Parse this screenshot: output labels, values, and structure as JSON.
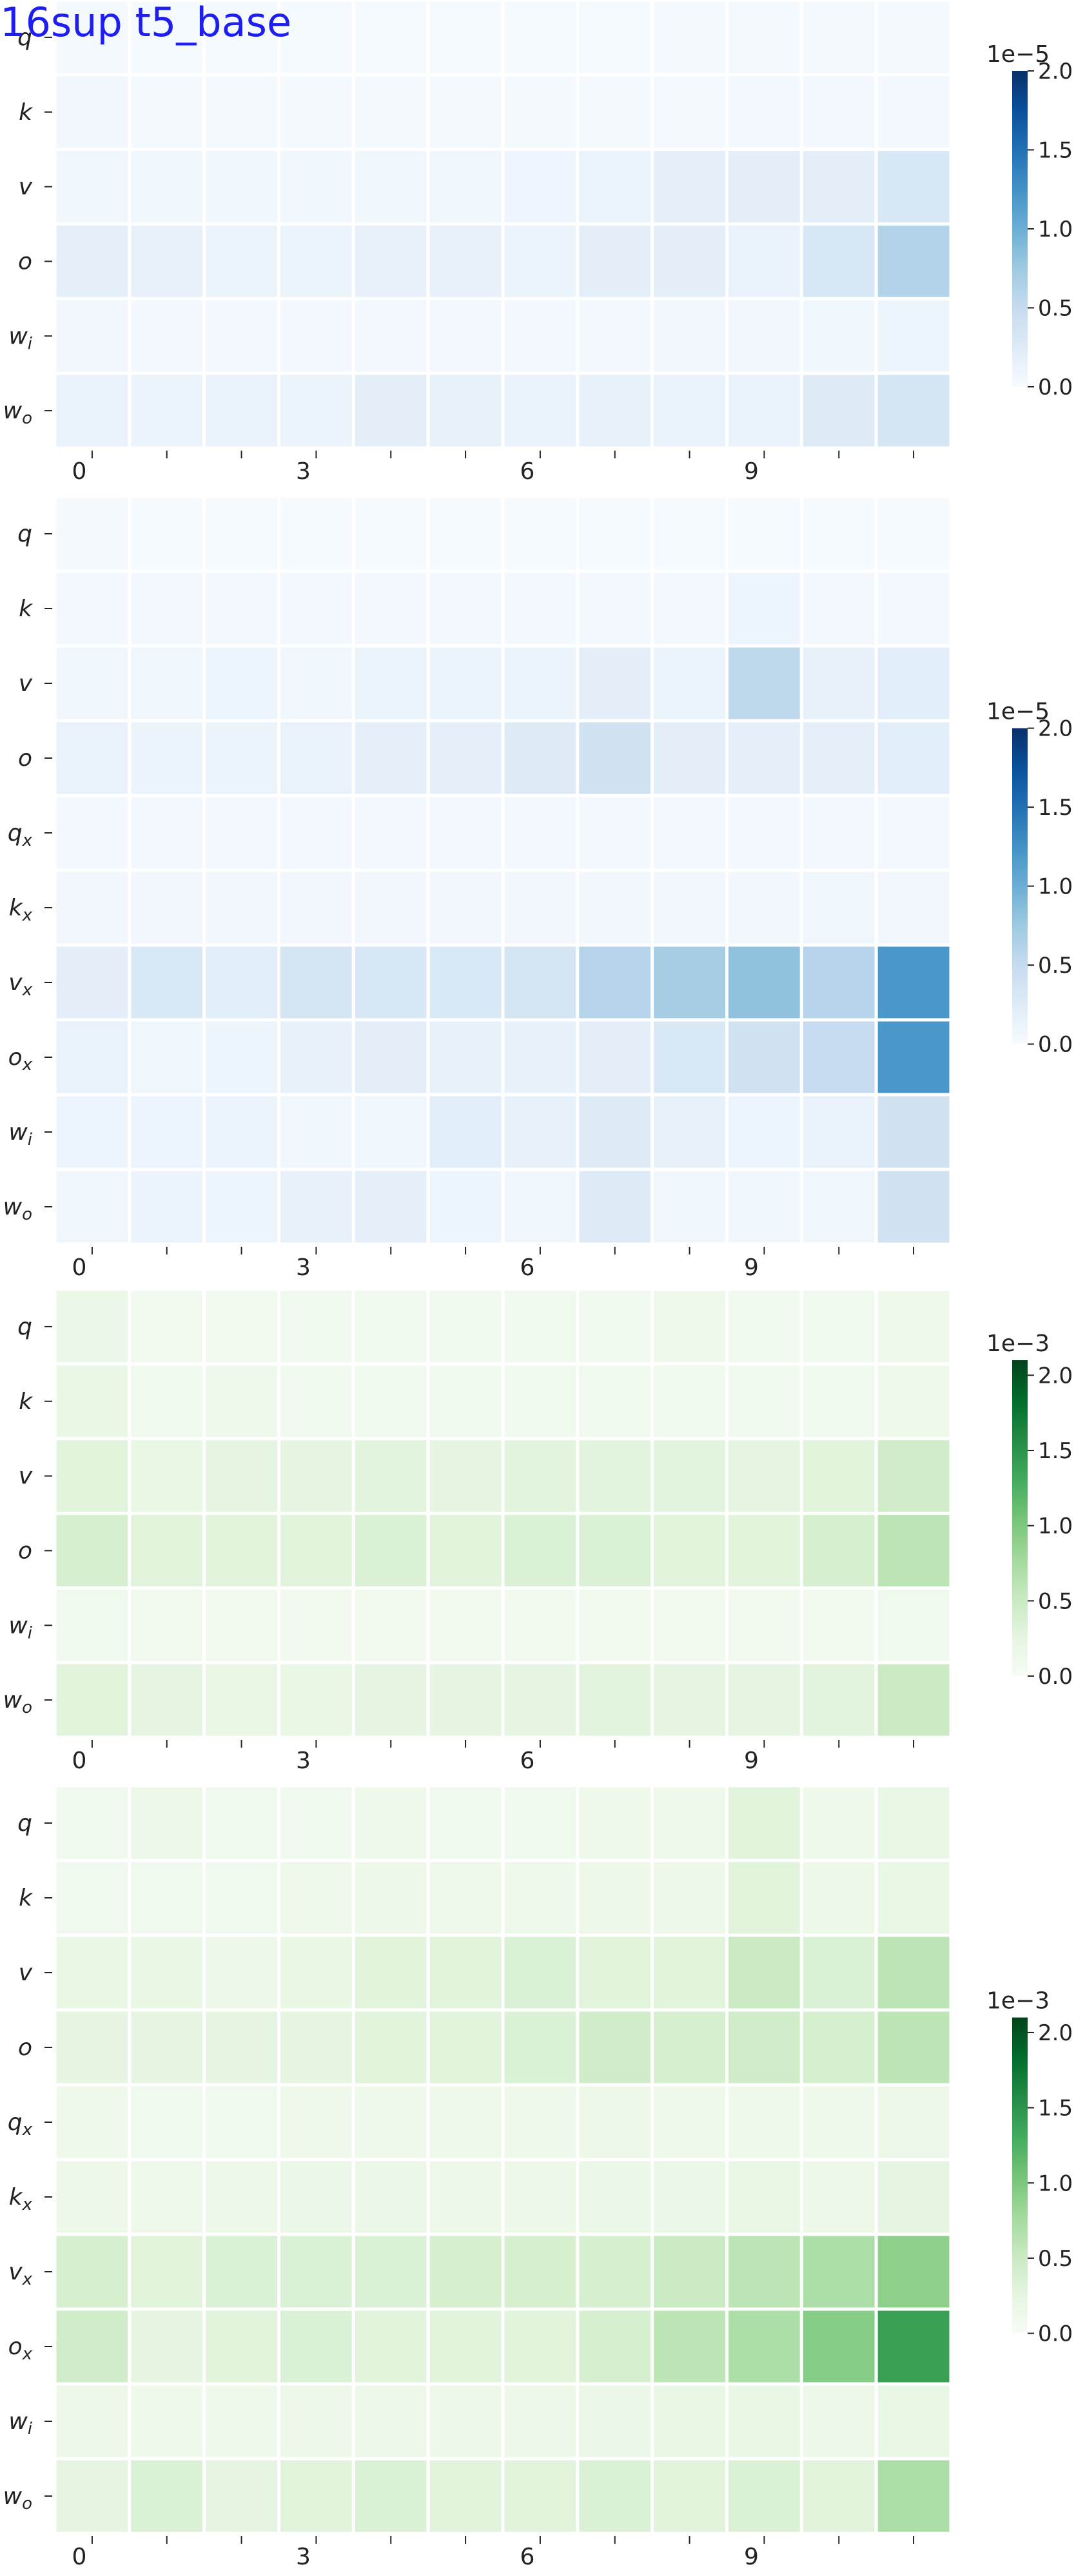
{
  "overlay": {
    "title": "16sup t5_base",
    "color": "#1e1ef0"
  },
  "chart_data": [
    {
      "type": "heatmap",
      "palette": "blues",
      "colorbar": {
        "exponent": "1e−5",
        "ticks": [
          "0.0",
          "0.5",
          "1.0",
          "1.5",
          "2.0"
        ],
        "vmin": 0,
        "vmax": 2.0
      },
      "x_tick_labels": [
        "0",
        "",
        "",
        "3",
        "",
        "",
        "6",
        "",
        "",
        "9",
        "",
        ""
      ],
      "y_labels": [
        {
          "base": "q",
          "sub": ""
        },
        {
          "base": "k",
          "sub": ""
        },
        {
          "base": "v",
          "sub": ""
        },
        {
          "base": "o",
          "sub": ""
        },
        {
          "base": "w",
          "sub": "i"
        },
        {
          "base": "w",
          "sub": "o"
        }
      ],
      "values": [
        [
          0.03,
          0.02,
          0.02,
          0.02,
          0.02,
          0.02,
          0.02,
          0.02,
          0.03,
          0.03,
          0.03,
          0.03
        ],
        [
          0.06,
          0.03,
          0.03,
          0.03,
          0.03,
          0.03,
          0.03,
          0.03,
          0.03,
          0.04,
          0.04,
          0.05
        ],
        [
          0.08,
          0.07,
          0.07,
          0.07,
          0.08,
          0.08,
          0.09,
          0.12,
          0.18,
          0.2,
          0.2,
          0.32
        ],
        [
          0.18,
          0.15,
          0.12,
          0.12,
          0.15,
          0.15,
          0.12,
          0.2,
          0.2,
          0.14,
          0.32,
          0.62
        ],
        [
          0.06,
          0.05,
          0.05,
          0.05,
          0.05,
          0.04,
          0.04,
          0.05,
          0.06,
          0.06,
          0.07,
          0.1
        ],
        [
          0.14,
          0.12,
          0.14,
          0.12,
          0.2,
          0.16,
          0.14,
          0.16,
          0.14,
          0.14,
          0.25,
          0.35
        ]
      ]
    },
    {
      "type": "heatmap",
      "palette": "blues",
      "colorbar": {
        "exponent": "1e−5",
        "ticks": [
          "0.0",
          "0.5",
          "1.0",
          "1.5",
          "2.0"
        ],
        "vmin": 0,
        "vmax": 2.0
      },
      "x_tick_labels": [
        "0",
        "",
        "",
        "3",
        "",
        "",
        "6",
        "",
        "",
        "9",
        "",
        ""
      ],
      "y_labels": [
        {
          "base": "q",
          "sub": ""
        },
        {
          "base": "k",
          "sub": ""
        },
        {
          "base": "v",
          "sub": ""
        },
        {
          "base": "o",
          "sub": ""
        },
        {
          "base": "q",
          "sub": "x"
        },
        {
          "base": "k",
          "sub": "x"
        },
        {
          "base": "v",
          "sub": "x"
        },
        {
          "base": "o",
          "sub": "x"
        },
        {
          "base": "w",
          "sub": "i"
        },
        {
          "base": "w",
          "sub": "o"
        }
      ],
      "values": [
        [
          0.03,
          0.02,
          0.02,
          0.02,
          0.02,
          0.02,
          0.02,
          0.02,
          0.02,
          0.02,
          0.02,
          0.02
        ],
        [
          0.04,
          0.05,
          0.04,
          0.04,
          0.04,
          0.04,
          0.05,
          0.05,
          0.04,
          0.1,
          0.04,
          0.04
        ],
        [
          0.08,
          0.08,
          0.1,
          0.08,
          0.12,
          0.12,
          0.12,
          0.2,
          0.12,
          0.55,
          0.15,
          0.22
        ],
        [
          0.14,
          0.12,
          0.12,
          0.14,
          0.18,
          0.18,
          0.25,
          0.4,
          0.2,
          0.18,
          0.18,
          0.22
        ],
        [
          0.04,
          0.04,
          0.04,
          0.04,
          0.04,
          0.04,
          0.04,
          0.04,
          0.04,
          0.04,
          0.04,
          0.04
        ],
        [
          0.06,
          0.06,
          0.06,
          0.06,
          0.06,
          0.06,
          0.06,
          0.06,
          0.06,
          0.06,
          0.08,
          0.06
        ],
        [
          0.2,
          0.3,
          0.22,
          0.36,
          0.32,
          0.3,
          0.36,
          0.6,
          0.7,
          0.82,
          0.6,
          1.2
        ],
        [
          0.14,
          0.08,
          0.1,
          0.16,
          0.2,
          0.16,
          0.16,
          0.2,
          0.3,
          0.4,
          0.5,
          1.2
        ],
        [
          0.1,
          0.1,
          0.12,
          0.08,
          0.08,
          0.22,
          0.16,
          0.25,
          0.16,
          0.1,
          0.14,
          0.4
        ],
        [
          0.08,
          0.12,
          0.1,
          0.15,
          0.18,
          0.1,
          0.08,
          0.25,
          0.08,
          0.08,
          0.08,
          0.4
        ]
      ]
    },
    {
      "type": "heatmap",
      "palette": "greens",
      "colorbar": {
        "exponent": "1e−3",
        "ticks": [
          "0.0",
          "0.5",
          "1.0",
          "1.5",
          "2.0"
        ],
        "vmin": 0,
        "vmax": 2.1
      },
      "x_tick_labels": [
        "0",
        "",
        "",
        "3",
        "",
        "",
        "6",
        "",
        "",
        "9",
        "",
        ""
      ],
      "y_labels": [
        {
          "base": "q",
          "sub": ""
        },
        {
          "base": "k",
          "sub": ""
        },
        {
          "base": "v",
          "sub": ""
        },
        {
          "base": "o",
          "sub": ""
        },
        {
          "base": "w",
          "sub": "i"
        },
        {
          "base": "w",
          "sub": "o"
        }
      ],
      "values": [
        [
          0.18,
          0.08,
          0.08,
          0.1,
          0.1,
          0.1,
          0.1,
          0.1,
          0.12,
          0.1,
          0.1,
          0.12
        ],
        [
          0.2,
          0.1,
          0.12,
          0.1,
          0.1,
          0.1,
          0.1,
          0.1,
          0.1,
          0.1,
          0.1,
          0.12
        ],
        [
          0.3,
          0.2,
          0.25,
          0.25,
          0.28,
          0.25,
          0.28,
          0.28,
          0.28,
          0.25,
          0.3,
          0.45
        ],
        [
          0.4,
          0.3,
          0.3,
          0.3,
          0.35,
          0.3,
          0.35,
          0.35,
          0.3,
          0.3,
          0.4,
          0.6
        ],
        [
          0.1,
          0.08,
          0.08,
          0.08,
          0.08,
          0.08,
          0.08,
          0.08,
          0.08,
          0.08,
          0.08,
          0.1
        ],
        [
          0.3,
          0.25,
          0.22,
          0.2,
          0.25,
          0.25,
          0.25,
          0.28,
          0.25,
          0.25,
          0.28,
          0.5
        ]
      ]
    },
    {
      "type": "heatmap",
      "palette": "greens",
      "colorbar": {
        "exponent": "1e−3",
        "ticks": [
          "0.0",
          "0.5",
          "1.0",
          "1.5",
          "2.0"
        ],
        "vmin": 0,
        "vmax": 2.1
      },
      "x_tick_labels": [
        "0",
        "",
        "",
        "3",
        "",
        "",
        "6",
        "",
        "",
        "9",
        "",
        ""
      ],
      "y_labels": [
        {
          "base": "q",
          "sub": ""
        },
        {
          "base": "k",
          "sub": ""
        },
        {
          "base": "v",
          "sub": ""
        },
        {
          "base": "o",
          "sub": ""
        },
        {
          "base": "q",
          "sub": "x"
        },
        {
          "base": "k",
          "sub": "x"
        },
        {
          "base": "v",
          "sub": "x"
        },
        {
          "base": "o",
          "sub": "x"
        },
        {
          "base": "w",
          "sub": "i"
        },
        {
          "base": "w",
          "sub": "o"
        }
      ],
      "values": [
        [
          0.1,
          0.15,
          0.1,
          0.1,
          0.12,
          0.1,
          0.1,
          0.12,
          0.12,
          0.3,
          0.12,
          0.2
        ],
        [
          0.1,
          0.1,
          0.1,
          0.12,
          0.15,
          0.12,
          0.12,
          0.15,
          0.15,
          0.3,
          0.15,
          0.2
        ],
        [
          0.2,
          0.2,
          0.15,
          0.2,
          0.3,
          0.3,
          0.35,
          0.3,
          0.3,
          0.5,
          0.35,
          0.6
        ],
        [
          0.25,
          0.25,
          0.25,
          0.25,
          0.3,
          0.3,
          0.35,
          0.45,
          0.4,
          0.45,
          0.4,
          0.6
        ],
        [
          0.12,
          0.1,
          0.1,
          0.12,
          0.12,
          0.12,
          0.12,
          0.15,
          0.12,
          0.12,
          0.12,
          0.15
        ],
        [
          0.15,
          0.12,
          0.15,
          0.18,
          0.18,
          0.15,
          0.15,
          0.18,
          0.18,
          0.2,
          0.15,
          0.25
        ],
        [
          0.4,
          0.3,
          0.35,
          0.35,
          0.35,
          0.4,
          0.4,
          0.4,
          0.5,
          0.6,
          0.7,
          0.9
        ],
        [
          0.45,
          0.25,
          0.3,
          0.35,
          0.3,
          0.3,
          0.3,
          0.4,
          0.6,
          0.7,
          0.95,
          1.4
        ],
        [
          0.15,
          0.12,
          0.12,
          0.15,
          0.15,
          0.15,
          0.15,
          0.18,
          0.2,
          0.2,
          0.15,
          0.2
        ],
        [
          0.25,
          0.35,
          0.25,
          0.3,
          0.35,
          0.3,
          0.3,
          0.35,
          0.3,
          0.35,
          0.3,
          0.7
        ]
      ]
    }
  ]
}
